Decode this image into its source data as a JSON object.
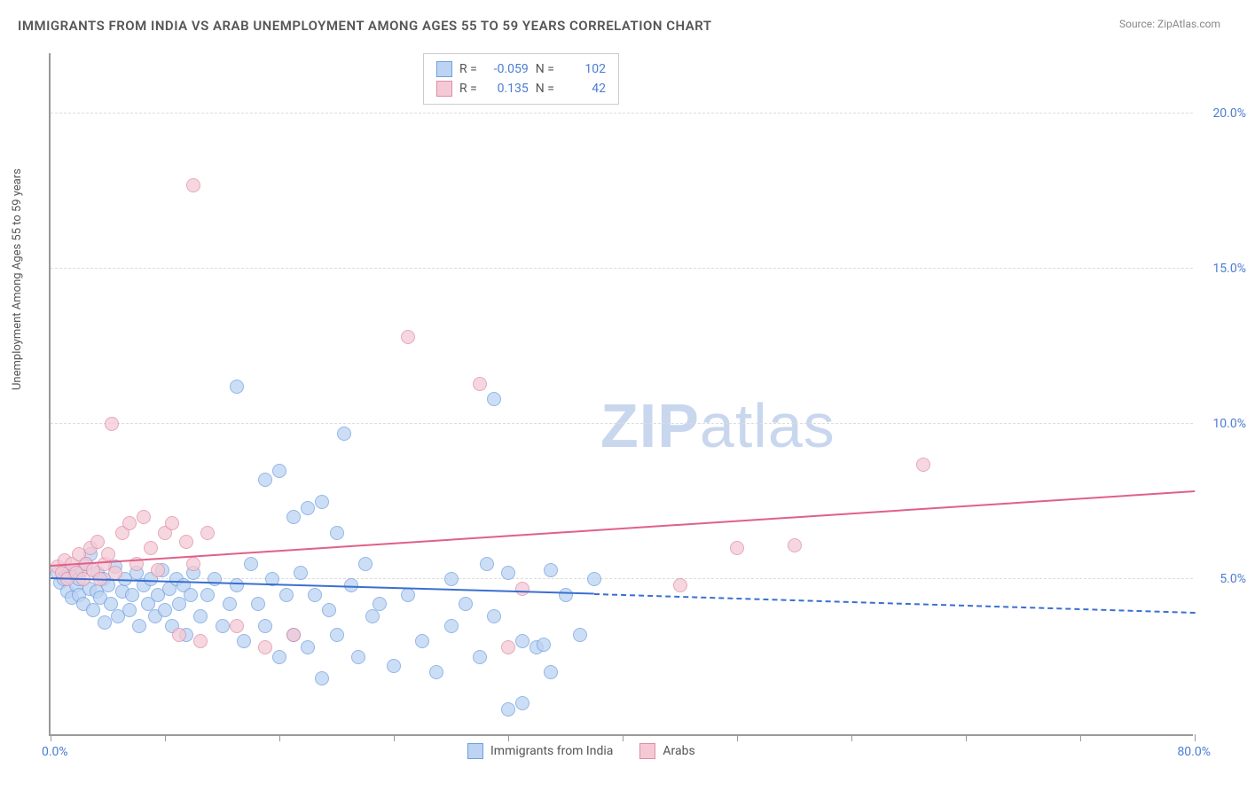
{
  "title": "IMMIGRANTS FROM INDIA VS ARAB UNEMPLOYMENT AMONG AGES 55 TO 59 YEARS CORRELATION CHART",
  "source": "Source: ZipAtlas.com",
  "ylabel": "Unemployment Among Ages 55 to 59 years",
  "watermark_bold": "ZIP",
  "watermark_rest": "atlas",
  "chart": {
    "type": "scatter",
    "xlim": [
      0,
      80
    ],
    "ylim": [
      0,
      22
    ],
    "x_origin_label": "0.0%",
    "x_max_label": "80.0%",
    "y_ticks": [
      {
        "v": 5.0,
        "label": "5.0%"
      },
      {
        "v": 10.0,
        "label": "10.0%"
      },
      {
        "v": 15.0,
        "label": "15.0%"
      },
      {
        "v": 20.0,
        "label": "20.0%"
      }
    ],
    "x_tick_positions": [
      0,
      8,
      16,
      24,
      32,
      40,
      48,
      56,
      64,
      72,
      80
    ],
    "background_color": "#ffffff",
    "grid_color": "#dddddd",
    "axis_color": "#999999",
    "tick_label_color": "#4a7dd4"
  },
  "series": [
    {
      "name": "Immigrants from India",
      "fill": "#bcd3f2",
      "stroke": "#6f9fe0",
      "line_color": "#3a6fd0",
      "r_label": "R =",
      "n_label": "N =",
      "R": "-0.059",
      "N": "102",
      "trend": {
        "x1": 0,
        "y1": 5.0,
        "x2": 38,
        "y2": 4.5,
        "dashed_to": 80,
        "y_end": 3.9
      },
      "points": [
        [
          0.5,
          5.2
        ],
        [
          0.7,
          4.9
        ],
        [
          0.9,
          5.0
        ],
        [
          1.0,
          5.3
        ],
        [
          1.2,
          4.6
        ],
        [
          1.3,
          5.1
        ],
        [
          1.5,
          4.4
        ],
        [
          1.6,
          5.2
        ],
        [
          1.8,
          4.8
        ],
        [
          2.0,
          5.0
        ],
        [
          2.0,
          4.5
        ],
        [
          2.2,
          5.3
        ],
        [
          2.3,
          4.2
        ],
        [
          2.5,
          5.5
        ],
        [
          2.7,
          4.7
        ],
        [
          2.8,
          5.8
        ],
        [
          3.0,
          4.0
        ],
        [
          3.2,
          4.6
        ],
        [
          3.3,
          5.2
        ],
        [
          3.5,
          4.4
        ],
        [
          3.7,
          5.0
        ],
        [
          3.8,
          3.6
        ],
        [
          4.0,
          4.8
        ],
        [
          4.2,
          4.2
        ],
        [
          4.5,
          5.4
        ],
        [
          4.7,
          3.8
        ],
        [
          5.0,
          4.6
        ],
        [
          5.2,
          5.0
        ],
        [
          5.5,
          4.0
        ],
        [
          5.7,
          4.5
        ],
        [
          6.0,
          5.2
        ],
        [
          6.2,
          3.5
        ],
        [
          6.5,
          4.8
        ],
        [
          6.8,
          4.2
        ],
        [
          7.0,
          5.0
        ],
        [
          7.3,
          3.8
        ],
        [
          7.5,
          4.5
        ],
        [
          7.8,
          5.3
        ],
        [
          8.0,
          4.0
        ],
        [
          8.3,
          4.7
        ],
        [
          8.5,
          3.5
        ],
        [
          8.8,
          5.0
        ],
        [
          9.0,
          4.2
        ],
        [
          9.3,
          4.8
        ],
        [
          9.5,
          3.2
        ],
        [
          9.8,
          4.5
        ],
        [
          10.0,
          5.2
        ],
        [
          10.5,
          3.8
        ],
        [
          11.0,
          4.5
        ],
        [
          11.5,
          5.0
        ],
        [
          12.0,
          3.5
        ],
        [
          12.5,
          4.2
        ],
        [
          13.0,
          11.2
        ],
        [
          13.0,
          4.8
        ],
        [
          13.5,
          3.0
        ],
        [
          14.0,
          5.5
        ],
        [
          14.5,
          4.2
        ],
        [
          15.0,
          8.2
        ],
        [
          15.0,
          3.5
        ],
        [
          15.5,
          5.0
        ],
        [
          16.0,
          8.5
        ],
        [
          16.0,
          2.5
        ],
        [
          16.5,
          4.5
        ],
        [
          17.0,
          7.0
        ],
        [
          17.0,
          3.2
        ],
        [
          17.5,
          5.2
        ],
        [
          18.0,
          7.3
        ],
        [
          18.0,
          2.8
        ],
        [
          18.5,
          4.5
        ],
        [
          19.0,
          7.5
        ],
        [
          19.0,
          1.8
        ],
        [
          19.5,
          4.0
        ],
        [
          20.0,
          6.5
        ],
        [
          20.0,
          3.2
        ],
        [
          20.5,
          9.7
        ],
        [
          21.0,
          4.8
        ],
        [
          21.5,
          2.5
        ],
        [
          22.0,
          5.5
        ],
        [
          22.5,
          3.8
        ],
        [
          23.0,
          4.2
        ],
        [
          24.0,
          2.2
        ],
        [
          25.0,
          4.5
        ],
        [
          26.0,
          3.0
        ],
        [
          27.0,
          2.0
        ],
        [
          28.0,
          5.0
        ],
        [
          28.0,
          3.5
        ],
        [
          29.0,
          4.2
        ],
        [
          30.0,
          2.5
        ],
        [
          30.5,
          5.5
        ],
        [
          31.0,
          10.8
        ],
        [
          31.0,
          3.8
        ],
        [
          32.0,
          5.2
        ],
        [
          32.0,
          0.8
        ],
        [
          33.0,
          3.0
        ],
        [
          33.0,
          1.0
        ],
        [
          34.0,
          2.8
        ],
        [
          34.5,
          2.9
        ],
        [
          35.0,
          5.3
        ],
        [
          35.0,
          2.0
        ],
        [
          36.0,
          4.5
        ],
        [
          37.0,
          3.2
        ],
        [
          38.0,
          5.0
        ]
      ]
    },
    {
      "name": "Arabs",
      "fill": "#f4c9d5",
      "stroke": "#e08ca5",
      "line_color": "#e06088",
      "r_label": "R =",
      "n_label": "N =",
      "R": "0.135",
      "N": "42",
      "trend": {
        "x1": 0,
        "y1": 5.4,
        "x2": 80,
        "y2": 7.8,
        "dashed_to": null
      },
      "points": [
        [
          0.5,
          5.4
        ],
        [
          0.8,
          5.2
        ],
        [
          1.0,
          5.6
        ],
        [
          1.2,
          5.0
        ],
        [
          1.5,
          5.5
        ],
        [
          1.8,
          5.2
        ],
        [
          2.0,
          5.8
        ],
        [
          2.3,
          5.0
        ],
        [
          2.5,
          5.5
        ],
        [
          2.8,
          6.0
        ],
        [
          3.0,
          5.3
        ],
        [
          3.3,
          6.2
        ],
        [
          3.5,
          5.0
        ],
        [
          3.8,
          5.5
        ],
        [
          4.0,
          5.8
        ],
        [
          4.3,
          10.0
        ],
        [
          4.5,
          5.2
        ],
        [
          5.0,
          6.5
        ],
        [
          5.5,
          6.8
        ],
        [
          6.0,
          5.5
        ],
        [
          6.5,
          7.0
        ],
        [
          7.0,
          6.0
        ],
        [
          7.5,
          5.3
        ],
        [
          8.0,
          6.5
        ],
        [
          8.5,
          6.8
        ],
        [
          9.0,
          3.2
        ],
        [
          9.5,
          6.2
        ],
        [
          10.0,
          5.5
        ],
        [
          10.0,
          17.7
        ],
        [
          10.5,
          3.0
        ],
        [
          11.0,
          6.5
        ],
        [
          13.0,
          3.5
        ],
        [
          15.0,
          2.8
        ],
        [
          17.0,
          3.2
        ],
        [
          25.0,
          12.8
        ],
        [
          30.0,
          11.3
        ],
        [
          32.0,
          2.8
        ],
        [
          33.0,
          4.7
        ],
        [
          44.0,
          4.8
        ],
        [
          48.0,
          6.0
        ],
        [
          52.0,
          6.1
        ],
        [
          61.0,
          8.7
        ]
      ]
    }
  ]
}
